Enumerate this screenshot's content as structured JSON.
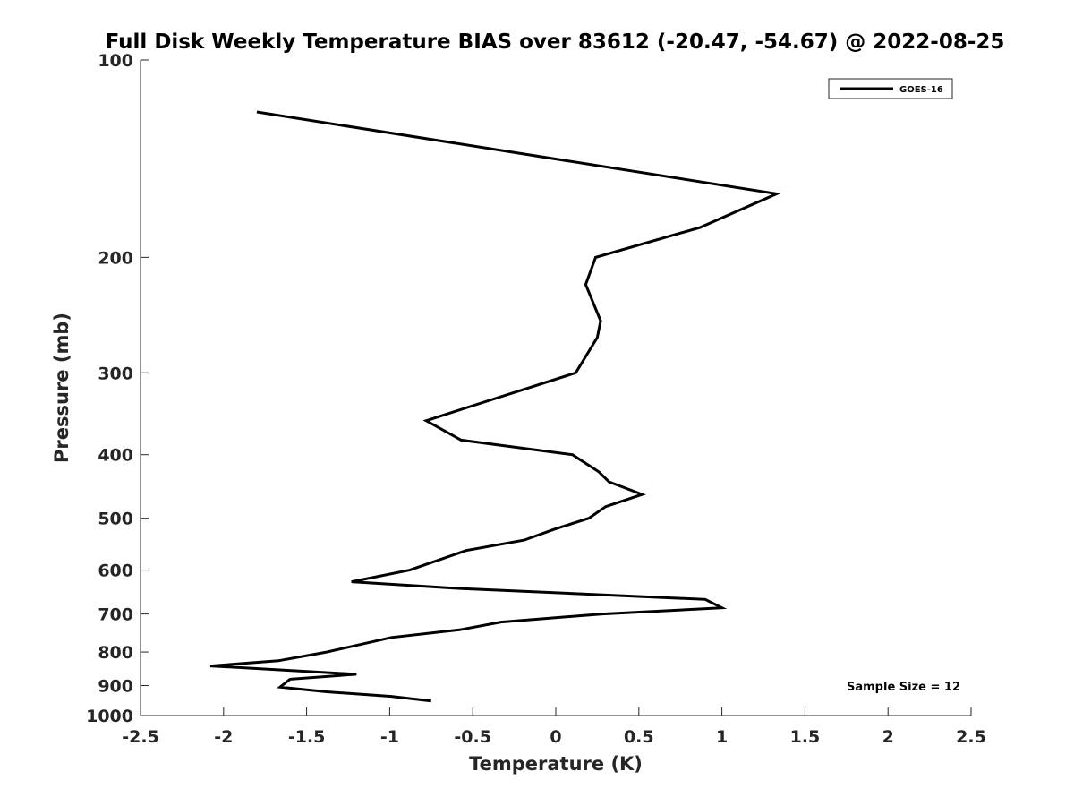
{
  "chart_data": {
    "type": "line",
    "title": "Full Disk Weekly Temperature BIAS over 83612 (-20.47, -54.67) @ 2022-08-25",
    "xlabel": "Temperature (K)",
    "ylabel": "Pressure (mb)",
    "xlim": [
      -2.5,
      2.5
    ],
    "ylim": [
      100,
      1000
    ],
    "yscale": "log",
    "y_reversed": true,
    "grid": false,
    "legend_position": "top-right",
    "xticks": [
      -2.5,
      -2,
      -1.5,
      -1,
      -0.5,
      0,
      0.5,
      1,
      1.5,
      2,
      2.5
    ],
    "xtick_labels": [
      "-2.5",
      "-2",
      "-1.5",
      "-1",
      "-0.5",
      "0",
      "0.5",
      "1",
      "1.5",
      "2",
      "2.5"
    ],
    "yticks": [
      100,
      200,
      300,
      400,
      500,
      600,
      700,
      800,
      900,
      1000
    ],
    "ytick_labels": [
      "100",
      "200",
      "300",
      "400",
      "500",
      "600",
      "700",
      "800",
      "900",
      "1000"
    ],
    "annotation": "Sample Size = 12",
    "series": [
      {
        "name": "GOES-16",
        "color": "#000000",
        "points": [
          {
            "x": -1.8,
            "p": 120
          },
          {
            "x": 1.33,
            "p": 160
          },
          {
            "x": 0.87,
            "p": 180
          },
          {
            "x": 0.24,
            "p": 200
          },
          {
            "x": 0.18,
            "p": 220
          },
          {
            "x": 0.27,
            "p": 250
          },
          {
            "x": 0.25,
            "p": 265
          },
          {
            "x": 0.12,
            "p": 300
          },
          {
            "x": -0.55,
            "p": 340
          },
          {
            "x": -0.78,
            "p": 355
          },
          {
            "x": -0.57,
            "p": 380
          },
          {
            "x": 0.1,
            "p": 400
          },
          {
            "x": 0.26,
            "p": 425
          },
          {
            "x": 0.32,
            "p": 440
          },
          {
            "x": 0.52,
            "p": 460
          },
          {
            "x": 0.3,
            "p": 480
          },
          {
            "x": 0.2,
            "p": 500
          },
          {
            "x": -0.01,
            "p": 520
          },
          {
            "x": -0.19,
            "p": 540
          },
          {
            "x": -0.54,
            "p": 560
          },
          {
            "x": -0.88,
            "p": 600
          },
          {
            "x": -1.23,
            "p": 625
          },
          {
            "x": -0.58,
            "p": 640
          },
          {
            "x": 0.9,
            "p": 665
          },
          {
            "x": 1.0,
            "p": 685
          },
          {
            "x": 0.28,
            "p": 700
          },
          {
            "x": -0.33,
            "p": 720
          },
          {
            "x": -0.58,
            "p": 740
          },
          {
            "x": -0.99,
            "p": 760
          },
          {
            "x": -1.38,
            "p": 800
          },
          {
            "x": -1.67,
            "p": 825
          },
          {
            "x": -2.08,
            "p": 840
          },
          {
            "x": -1.2,
            "p": 865
          },
          {
            "x": -1.6,
            "p": 880
          },
          {
            "x": -1.66,
            "p": 905
          },
          {
            "x": -1.38,
            "p": 920
          },
          {
            "x": -0.99,
            "p": 935
          },
          {
            "x": -0.75,
            "p": 950
          }
        ]
      }
    ]
  }
}
